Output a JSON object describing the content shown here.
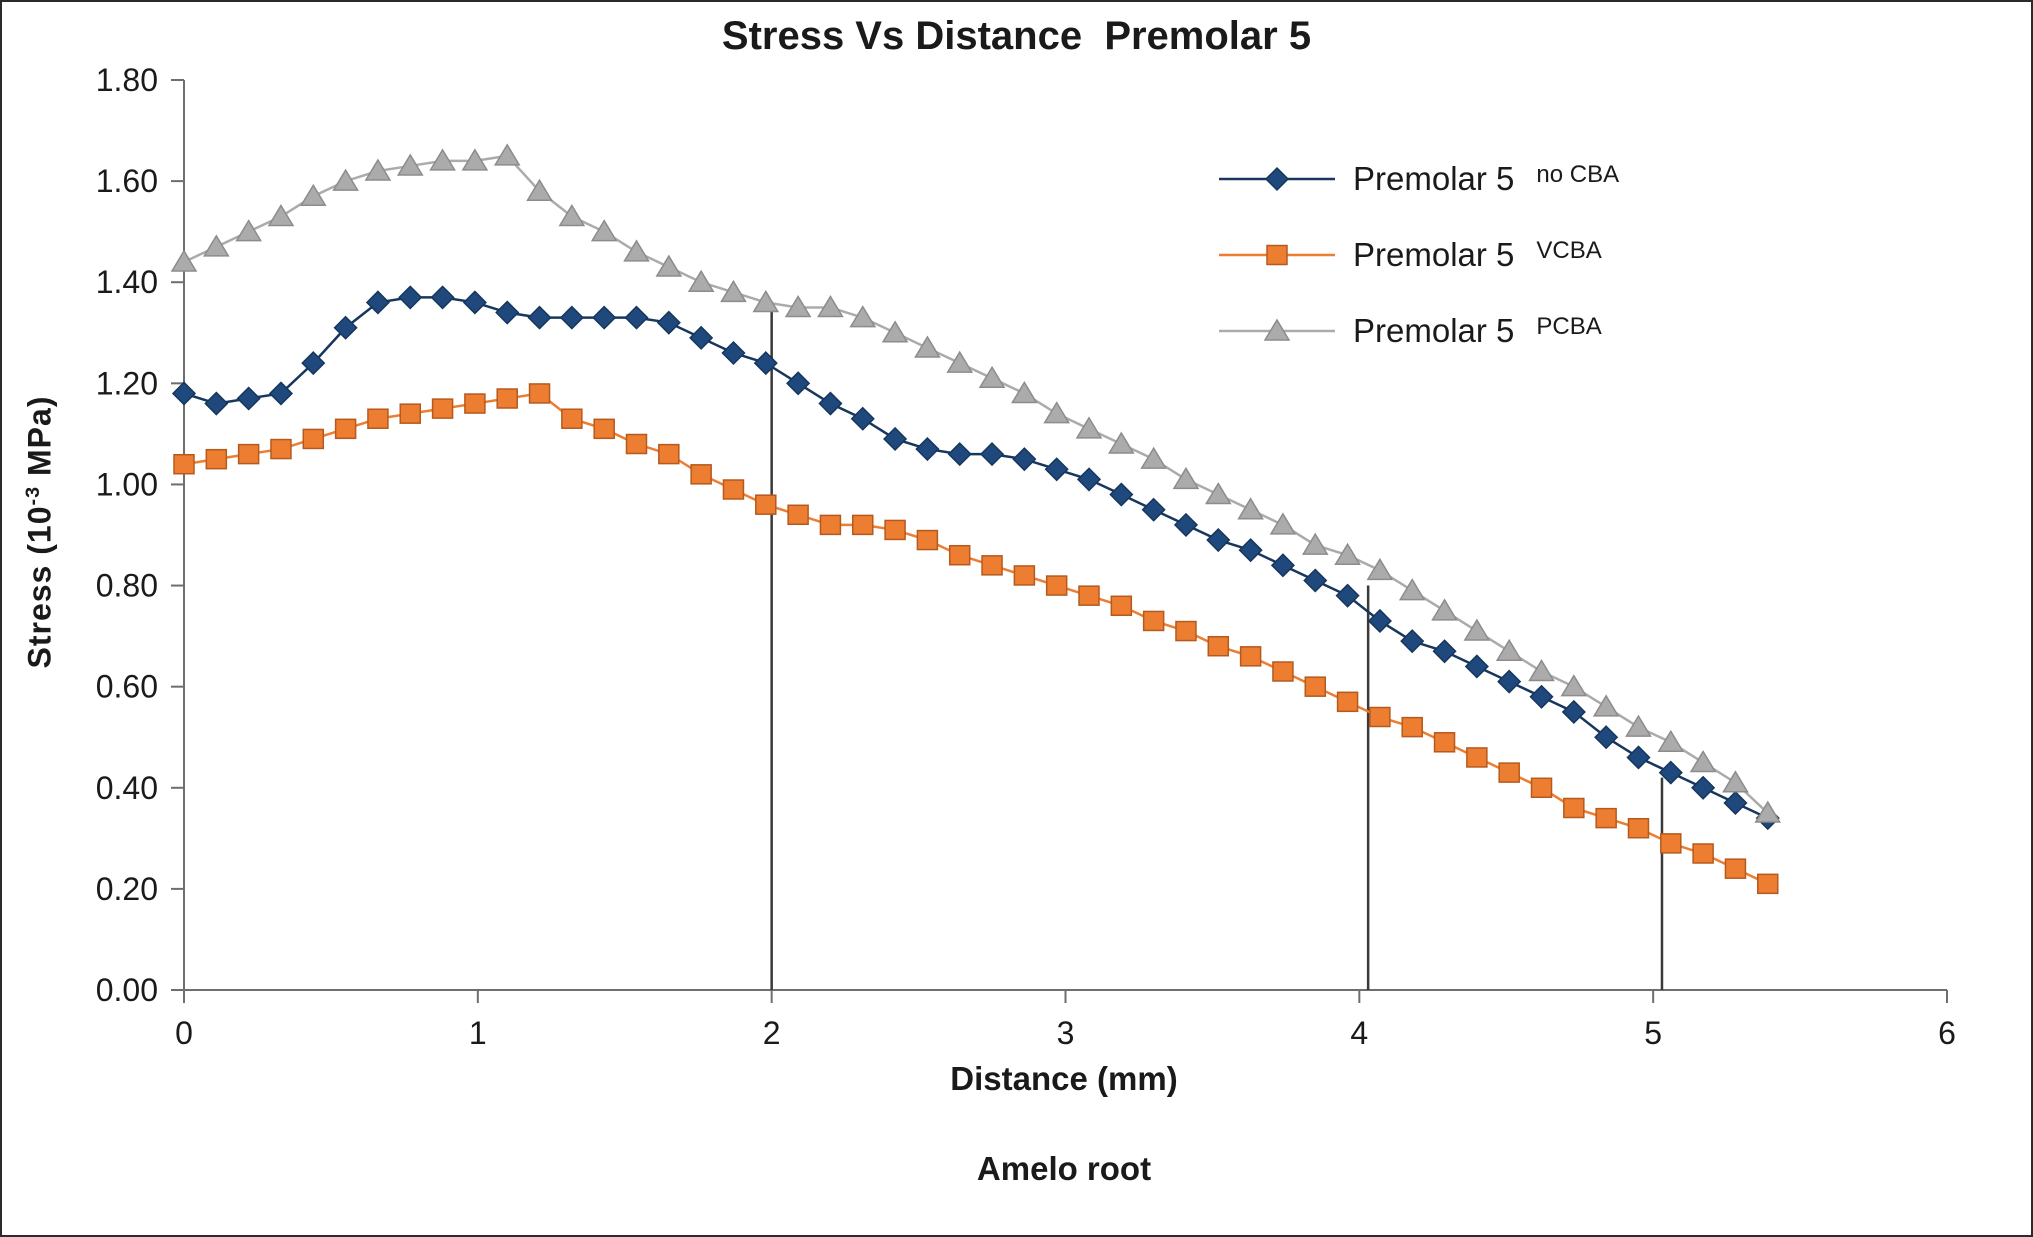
{
  "chart_data": {
    "type": "line",
    "title": "Stress Vs Distance  Premolar 5",
    "xlabel": "Distance (mm)",
    "ylabel_parts": {
      "prefix": "Stress (10",
      "sup": "-3",
      "suffix": " MPa)"
    },
    "footer": "Amelo root",
    "xlim": [
      0,
      6
    ],
    "ylim": [
      0,
      1.8
    ],
    "x_ticks": [
      0,
      1,
      2,
      3,
      4,
      5,
      6
    ],
    "y_ticks": [
      "0.00",
      "0.20",
      "0.40",
      "0.60",
      "0.80",
      "1.00",
      "1.20",
      "1.40",
      "1.60",
      "1.80"
    ],
    "grid": "off",
    "legend_position": "inside-right",
    "x": [
      0,
      0.11,
      0.22,
      0.33,
      0.44,
      0.55,
      0.66,
      0.77,
      0.88,
      0.99,
      1.1,
      1.21,
      1.32,
      1.43,
      1.54,
      1.65,
      1.76,
      1.87,
      1.98,
      2.09,
      2.2,
      2.31,
      2.42,
      2.53,
      2.64,
      2.75,
      2.86,
      2.97,
      3.08,
      3.19,
      3.3,
      3.41,
      3.52,
      3.63,
      3.74,
      3.85,
      3.96,
      4.07,
      4.18,
      4.29,
      4.4,
      4.51,
      4.62,
      4.73,
      4.84,
      4.95,
      5.06,
      5.17,
      5.28,
      5.39
    ],
    "series": [
      {
        "name": "Premolar 5 no CBA",
        "label_main": "Premolar 5",
        "label_sub": "no CBA",
        "marker": "diamond",
        "color": "#1F497D",
        "edge": "#16365C",
        "line": "#17375E",
        "values": [
          1.18,
          1.16,
          1.17,
          1.18,
          1.24,
          1.31,
          1.36,
          1.37,
          1.37,
          1.36,
          1.34,
          1.33,
          1.33,
          1.33,
          1.33,
          1.32,
          1.29,
          1.26,
          1.24,
          1.2,
          1.16,
          1.13,
          1.09,
          1.07,
          1.06,
          1.06,
          1.05,
          1.03,
          1.01,
          0.98,
          0.95,
          0.92,
          0.89,
          0.87,
          0.84,
          0.81,
          0.78,
          0.73,
          0.69,
          0.67,
          0.64,
          0.61,
          0.58,
          0.55,
          0.5,
          0.46,
          0.43,
          0.4,
          0.37,
          0.34
        ]
      },
      {
        "name": "Premolar 5 VCBA",
        "label_main": "Premolar 5",
        "label_sub": "VCBA",
        "marker": "square",
        "color": "#ED7D31",
        "edge": "#B55A1E",
        "line": "#ED7D31",
        "values": [
          1.04,
          1.05,
          1.06,
          1.07,
          1.09,
          1.11,
          1.13,
          1.14,
          1.15,
          1.16,
          1.17,
          1.18,
          1.13,
          1.11,
          1.08,
          1.06,
          1.02,
          0.99,
          0.96,
          0.94,
          0.92,
          0.92,
          0.91,
          0.89,
          0.86,
          0.84,
          0.82,
          0.8,
          0.78,
          0.76,
          0.73,
          0.71,
          0.68,
          0.66,
          0.63,
          0.6,
          0.57,
          0.54,
          0.52,
          0.49,
          0.46,
          0.43,
          0.4,
          0.36,
          0.34,
          0.32,
          0.29,
          0.27,
          0.24,
          0.21
        ]
      },
      {
        "name": "Premolar 5 PCBA",
        "label_main": "Premolar 5",
        "label_sub": "PCBA",
        "marker": "triangle",
        "color": "#ABABAB",
        "edge": "#8C8C8C",
        "line": "#ABABAB",
        "values": [
          1.44,
          1.47,
          1.5,
          1.53,
          1.57,
          1.6,
          1.62,
          1.63,
          1.64,
          1.64,
          1.65,
          1.58,
          1.53,
          1.5,
          1.46,
          1.43,
          1.4,
          1.38,
          1.36,
          1.35,
          1.35,
          1.33,
          1.3,
          1.27,
          1.24,
          1.21,
          1.18,
          1.14,
          1.11,
          1.08,
          1.05,
          1.01,
          0.98,
          0.95,
          0.92,
          0.88,
          0.86,
          0.83,
          0.79,
          0.75,
          0.71,
          0.67,
          0.63,
          0.6,
          0.56,
          0.52,
          0.49,
          0.45,
          0.41,
          0.35
        ]
      }
    ],
    "annotations": {
      "vlines": [
        {
          "x": 2.0,
          "y_top": 1.35
        },
        {
          "x": 4.03,
          "y_top": 0.8
        },
        {
          "x": 5.03,
          "y_top": 0.42
        }
      ]
    }
  }
}
